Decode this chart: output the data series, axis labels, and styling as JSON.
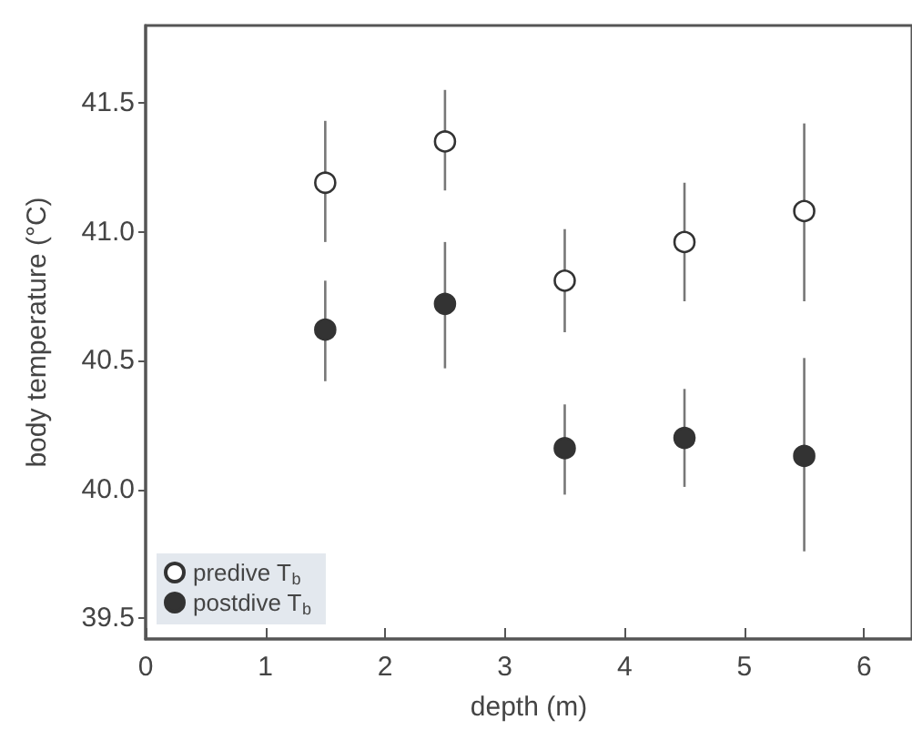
{
  "chart_data": {
    "type": "scatter",
    "xlabel": "depth (m)",
    "ylabel": "body temperature (°C)",
    "x": [
      1.5,
      2.5,
      3.5,
      4.5,
      5.5
    ],
    "series": [
      {
        "name": "predive T$_{b}$",
        "color": "#ffffff",
        "values": [
          41.19,
          41.35,
          40.81,
          40.96,
          41.08
        ],
        "errors": [
          [
            40.96,
            41.43
          ],
          [
            41.16,
            41.55
          ],
          [
            40.61,
            41.01
          ],
          [
            40.73,
            41.19
          ],
          [
            40.73,
            41.42
          ]
        ]
      },
      {
        "name": "postdive T$_{b}$",
        "color": "#333333",
        "values": [
          40.62,
          40.72,
          40.16,
          40.2,
          40.13
        ],
        "errors": [
          [
            40.42,
            40.81
          ],
          [
            40.47,
            40.96
          ],
          [
            39.98,
            40.33
          ],
          [
            40.01,
            40.39
          ],
          [
            39.76,
            40.51
          ]
        ]
      }
    ],
    "xlim": [
      0,
      6.4
    ],
    "xticks": [
      0,
      1,
      2,
      3,
      4,
      5,
      6
    ],
    "ylim": [
      39.42,
      41.8
    ],
    "yticks": [
      39.5,
      {
        "value": 40,
        "label": "40.0"
      },
      40.5,
      {
        "value": 41,
        "label": "41.0"
      },
      41.5
    ],
    "grid": false,
    "legend": "bottom left",
    "marker": "circle"
  }
}
